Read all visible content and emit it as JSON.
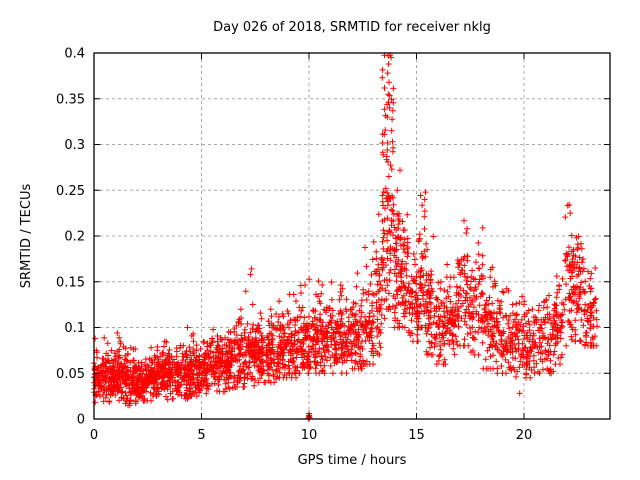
{
  "window": {
    "title": "Day 026 of 2018, SRMTID for receiver nklg"
  },
  "chart_data": {
    "type": "scatter",
    "title": "Day 026 of 2018, SRMTID for receiver nklg",
    "xlabel": "GPS time / hours",
    "ylabel": "SRMTID / TECUs",
    "xlim": [
      0,
      24
    ],
    "ylim": [
      0,
      0.4
    ],
    "xticks": [
      0,
      5,
      10,
      15,
      20
    ],
    "xtick_labels": [
      "0",
      "5",
      "10",
      "15",
      "20"
    ],
    "yticks": [
      0,
      0.05,
      0.1,
      0.15,
      0.2,
      0.25,
      0.3,
      0.35,
      0.4
    ],
    "ytick_labels": [
      "0",
      "0.05",
      "0.1",
      "0.15",
      "0.2",
      "0.25",
      "0.3",
      "0.35",
      "0.4"
    ],
    "grid": true,
    "grid_style": "dashed",
    "legend": "none",
    "series_name": "SRMTID",
    "marker": {
      "shape": "plus",
      "color": "#ff0000",
      "size": 6
    },
    "colors": {
      "grid": "#a8a8a8",
      "axis": "#000000",
      "background": "#ffffff",
      "marker": "#ff0000"
    },
    "seed": 20180126,
    "band_segments_comment": "Each segment: [hour_start, hour_end, n_points, y_center, y_spread_sd, y_min, y_max, uniform_fraction] summarizing the dense scatter band read from the plot",
    "band_segments": [
      [
        0.0,
        0.5,
        85,
        0.045,
        0.013,
        0.018,
        0.09,
        0.12
      ],
      [
        0.5,
        1.0,
        85,
        0.042,
        0.013,
        0.015,
        0.085,
        0.12
      ],
      [
        1.0,
        1.5,
        85,
        0.045,
        0.014,
        0.015,
        0.095,
        0.12
      ],
      [
        1.5,
        2.0,
        85,
        0.043,
        0.013,
        0.015,
        0.08,
        0.12
      ],
      [
        2.0,
        2.5,
        80,
        0.042,
        0.012,
        0.02,
        0.075,
        0.12
      ],
      [
        2.5,
        3.0,
        80,
        0.044,
        0.012,
        0.02,
        0.08,
        0.12
      ],
      [
        3.0,
        3.5,
        80,
        0.048,
        0.013,
        0.02,
        0.085,
        0.12
      ],
      [
        3.5,
        4.0,
        80,
        0.05,
        0.013,
        0.022,
        0.09,
        0.12
      ],
      [
        4.0,
        4.5,
        78,
        0.05,
        0.014,
        0.022,
        0.095,
        0.12
      ],
      [
        4.5,
        5.0,
        78,
        0.052,
        0.014,
        0.025,
        0.1,
        0.12
      ],
      [
        5.0,
        5.5,
        70,
        0.057,
        0.015,
        0.028,
        0.105,
        0.12
      ],
      [
        5.5,
        6.0,
        70,
        0.06,
        0.015,
        0.03,
        0.1,
        0.12
      ],
      [
        6.0,
        6.5,
        70,
        0.062,
        0.016,
        0.03,
        0.11,
        0.12
      ],
      [
        6.5,
        7.0,
        68,
        0.067,
        0.018,
        0.035,
        0.13,
        0.12
      ],
      [
        7.0,
        7.5,
        68,
        0.07,
        0.02,
        0.035,
        0.165,
        0.1
      ],
      [
        7.5,
        8.0,
        68,
        0.073,
        0.018,
        0.04,
        0.12,
        0.12
      ],
      [
        8.0,
        8.5,
        68,
        0.075,
        0.018,
        0.04,
        0.13,
        0.12
      ],
      [
        8.5,
        9.0,
        66,
        0.078,
        0.018,
        0.045,
        0.135,
        0.12
      ],
      [
        9.0,
        9.5,
        66,
        0.08,
        0.02,
        0.045,
        0.145,
        0.12
      ],
      [
        9.5,
        10.0,
        66,
        0.083,
        0.02,
        0.05,
        0.15,
        0.12
      ],
      [
        10.0,
        10.5,
        66,
        0.085,
        0.021,
        0.05,
        0.155,
        0.12
      ],
      [
        10.5,
        11.0,
        64,
        0.088,
        0.021,
        0.05,
        0.155,
        0.12
      ],
      [
        11.0,
        11.5,
        64,
        0.09,
        0.021,
        0.05,
        0.15,
        0.12
      ],
      [
        11.5,
        12.0,
        64,
        0.086,
        0.02,
        0.05,
        0.145,
        0.12
      ],
      [
        12.0,
        12.5,
        64,
        0.088,
        0.022,
        0.055,
        0.16,
        0.12
      ],
      [
        12.5,
        13.0,
        60,
        0.1,
        0.026,
        0.06,
        0.19,
        0.15
      ],
      [
        13.0,
        13.4,
        48,
        0.13,
        0.032,
        0.07,
        0.23,
        0.2
      ],
      [
        13.4,
        13.65,
        50,
        0.21,
        0.05,
        0.11,
        0.4,
        0.45
      ],
      [
        13.65,
        13.95,
        55,
        0.23,
        0.055,
        0.12,
        0.4,
        0.5
      ],
      [
        13.95,
        14.25,
        50,
        0.17,
        0.04,
        0.1,
        0.28,
        0.2
      ],
      [
        14.25,
        14.6,
        55,
        0.15,
        0.035,
        0.1,
        0.235,
        0.15
      ],
      [
        14.6,
        15.1,
        60,
        0.125,
        0.025,
        0.085,
        0.19,
        0.12
      ],
      [
        15.1,
        15.45,
        50,
        0.15,
        0.04,
        0.1,
        0.25,
        0.2
      ],
      [
        15.45,
        15.8,
        50,
        0.12,
        0.03,
        0.07,
        0.21,
        0.15
      ],
      [
        15.8,
        16.4,
        66,
        0.1,
        0.022,
        0.06,
        0.16,
        0.12
      ],
      [
        16.4,
        16.9,
        60,
        0.11,
        0.025,
        0.065,
        0.18,
        0.12
      ],
      [
        16.9,
        17.5,
        64,
        0.135,
        0.033,
        0.08,
        0.22,
        0.15
      ],
      [
        17.5,
        18.1,
        64,
        0.12,
        0.03,
        0.07,
        0.21,
        0.15
      ],
      [
        18.1,
        18.7,
        64,
        0.1,
        0.024,
        0.055,
        0.17,
        0.12
      ],
      [
        18.7,
        19.3,
        64,
        0.09,
        0.022,
        0.05,
        0.15,
        0.12
      ],
      [
        19.3,
        20.0,
        70,
        0.085,
        0.02,
        0.028,
        0.135,
        0.12
      ],
      [
        20.0,
        20.7,
        70,
        0.08,
        0.02,
        0.045,
        0.13,
        0.12
      ],
      [
        20.7,
        21.4,
        70,
        0.085,
        0.02,
        0.05,
        0.135,
        0.12
      ],
      [
        21.4,
        21.9,
        55,
        0.1,
        0.024,
        0.06,
        0.16,
        0.12
      ],
      [
        21.9,
        22.35,
        55,
        0.145,
        0.045,
        0.08,
        0.235,
        0.25
      ],
      [
        22.35,
        22.8,
        55,
        0.14,
        0.033,
        0.085,
        0.21,
        0.15
      ],
      [
        22.8,
        23.4,
        60,
        0.115,
        0.022,
        0.08,
        0.165,
        0.12
      ]
    ],
    "explicit_points_comment": "Individually visible notable points: [hour, TECUs]",
    "explicit_points": [
      [
        9.97,
        0.001
      ],
      [
        9.99,
        0.003
      ],
      [
        10.0,
        0.0
      ],
      [
        10.01,
        0.004
      ],
      [
        10.03,
        0.002
      ],
      [
        10.0,
        0.006
      ],
      [
        13.68,
        0.397
      ],
      [
        13.7,
        0.388
      ],
      [
        13.66,
        0.378
      ],
      [
        13.72,
        0.368
      ],
      [
        13.69,
        0.355
      ],
      [
        13.75,
        0.34
      ],
      [
        13.64,
        0.33
      ],
      [
        7.28,
        0.158
      ],
      [
        7.33,
        0.164
      ],
      [
        15.42,
        0.248
      ],
      [
        15.38,
        0.24
      ],
      [
        22.1,
        0.234
      ],
      [
        22.15,
        0.225
      ],
      [
        19.8,
        0.028
      ],
      [
        0.05,
        0.088
      ],
      [
        4.35,
        0.1
      ]
    ]
  }
}
